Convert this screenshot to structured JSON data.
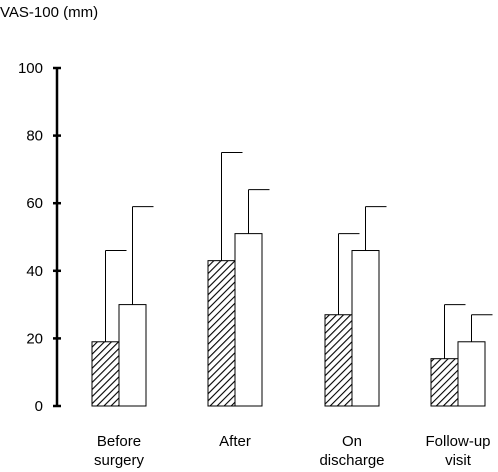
{
  "chart_data": {
    "type": "bar",
    "ylabel": "VAS-100 (mm)",
    "ylim": [
      0,
      100
    ],
    "yticks": [
      0,
      20,
      40,
      60,
      80,
      100
    ],
    "categories": [
      [
        "Before",
        "surgery"
      ],
      [
        "After"
      ],
      [
        "On",
        "discharge"
      ],
      [
        "Follow-up",
        "visit"
      ]
    ],
    "series": [
      {
        "fill": "hatched",
        "values": [
          19,
          43,
          27,
          14
        ],
        "error": [
          27,
          32,
          24,
          16
        ]
      },
      {
        "fill": "white",
        "values": [
          30,
          51,
          46,
          19
        ],
        "error": [
          29,
          13,
          13,
          8
        ]
      }
    ]
  }
}
